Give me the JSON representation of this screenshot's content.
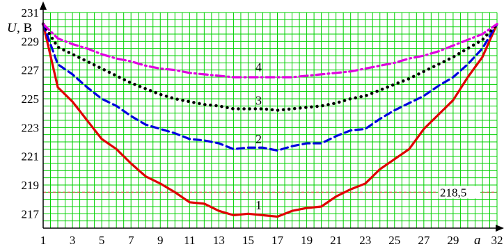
{
  "chart_data": {
    "type": "line",
    "ylabel_symbol": "U",
    "ylabel_unit": ", В",
    "xlabel": "a",
    "x_ticks": [
      1,
      3,
      5,
      7,
      9,
      11,
      13,
      15,
      17,
      19,
      21,
      23,
      25,
      27,
      29,
      32
    ],
    "y_ticks": [
      217,
      219,
      221,
      223,
      225,
      227,
      229,
      231
    ],
    "xlim": [
      1,
      32
    ],
    "ylim": [
      216,
      231
    ],
    "grid": true,
    "grid_color": "#00d000",
    "reference_line": {
      "value": 218.5,
      "label": "218,5",
      "color": "#e04040"
    },
    "x": [
      1,
      2,
      3,
      4,
      5,
      6,
      7,
      8,
      9,
      10,
      11,
      12,
      13,
      14,
      15,
      16,
      17,
      18,
      19,
      20,
      21,
      22,
      23,
      24,
      25,
      26,
      27,
      28,
      29,
      30,
      31,
      32
    ],
    "series": [
      {
        "label": "1",
        "color": "#e00000",
        "dash": "solid",
        "values": [
          230.2,
          225.8,
          224.8,
          223.5,
          222.2,
          221.5,
          220.5,
          219.6,
          219.1,
          218.5,
          217.8,
          217.7,
          217.2,
          216.9,
          217.0,
          216.9,
          216.8,
          217.2,
          217.4,
          217.5,
          218.2,
          218.7,
          219.1,
          220.1,
          220.8,
          221.5,
          222.9,
          223.9,
          224.9,
          226.5,
          227.9,
          230.2
        ]
      },
      {
        "label": "2",
        "color": "#0000e0",
        "dash": "dashed",
        "values": [
          230.2,
          227.4,
          226.7,
          225.8,
          225.0,
          224.5,
          223.8,
          223.2,
          222.9,
          222.6,
          222.2,
          222.1,
          221.9,
          221.5,
          221.6,
          221.6,
          221.4,
          221.7,
          221.9,
          221.9,
          222.4,
          222.8,
          222.9,
          223.6,
          224.2,
          224.7,
          225.2,
          225.9,
          226.5,
          227.4,
          228.5,
          230.2
        ]
      },
      {
        "label": "3",
        "color": "#000000",
        "dash": "dotted",
        "values": [
          230.2,
          228.6,
          228.1,
          227.6,
          227.1,
          226.6,
          226.1,
          225.7,
          225.3,
          225.0,
          224.8,
          224.6,
          224.5,
          224.3,
          224.3,
          224.3,
          224.2,
          224.3,
          224.4,
          224.5,
          224.7,
          225.0,
          225.2,
          225.6,
          226.0,
          226.4,
          226.9,
          227.4,
          227.9,
          228.5,
          229.1,
          230.2
        ]
      },
      {
        "label": "4",
        "color": "#e000e0",
        "dash": "dashdot",
        "values": [
          230.2,
          229.2,
          228.8,
          228.5,
          228.1,
          227.8,
          227.6,
          227.3,
          227.1,
          227.0,
          226.8,
          226.7,
          226.6,
          226.5,
          226.5,
          226.5,
          226.5,
          226.5,
          226.6,
          226.7,
          226.8,
          226.9,
          227.1,
          227.3,
          227.5,
          227.8,
          228.0,
          228.3,
          228.7,
          229.1,
          229.5,
          230.2
        ]
      }
    ]
  }
}
